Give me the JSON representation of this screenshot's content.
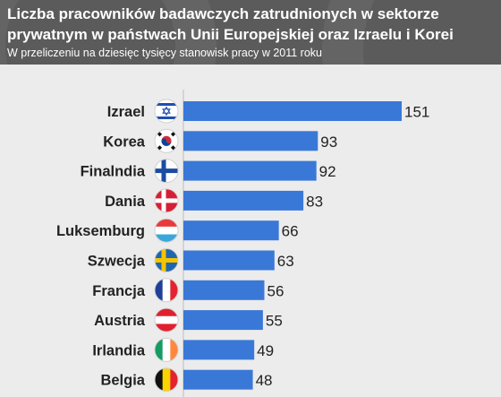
{
  "header": {
    "title": "Liczba pracowników badawczych zatrudnionych w sektorze prywatnym w państwach Unii Europejskiej oraz Izraelu i Korei",
    "subtitle": "W przeliczeniu na dziesięc tysięcy stanowisk pracy w 2011 roku"
  },
  "colors": {
    "bar": "#3a78d8",
    "header_bg": "#5b5b5b",
    "plot_bg": "#ececec",
    "text": "#222222"
  },
  "chart_data": {
    "type": "bar",
    "orientation": "horizontal",
    "title": "Liczba pracowników badawczych zatrudnionych w sektorze prywatnym w państwach Unii Europejskiej oraz Izraelu i Korei",
    "subtitle": "W przeliczeniu na dziesięc tysięcy stanowisk pracy w 2011 roku",
    "xlim": [
      0,
      151
    ],
    "grid": false,
    "categories": [
      "Izrael",
      "Korea",
      "Finalndia",
      "Dania",
      "Luksemburg",
      "Szwecja",
      "Francja",
      "Austria",
      "Irlandia",
      "Belgia"
    ],
    "values": [
      151,
      93,
      92,
      83,
      66,
      63,
      56,
      55,
      49,
      48
    ],
    "value_labels": [
      "151",
      "93",
      "92",
      "83",
      "66",
      "63",
      "56",
      "55",
      "49",
      "48"
    ],
    "flags": [
      "israel-flag-icon",
      "south-korea-flag-icon",
      "finland-flag-icon",
      "denmark-flag-icon",
      "luxembourg-flag-icon",
      "sweden-flag-icon",
      "france-flag-icon",
      "austria-flag-icon",
      "ireland-flag-icon",
      "belgium-flag-icon"
    ]
  }
}
